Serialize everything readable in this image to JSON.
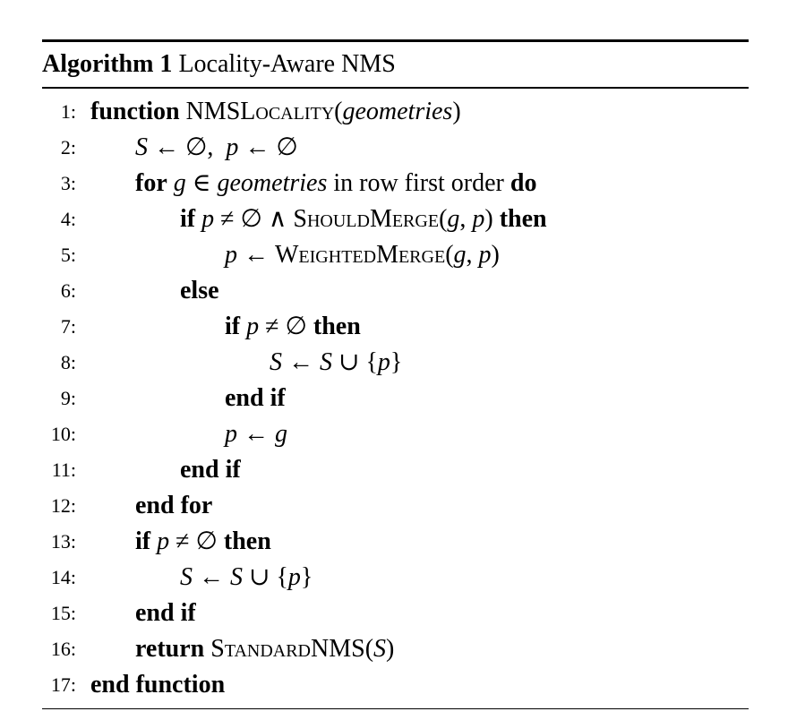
{
  "caption": {
    "label": "Algorithm 1",
    "title": "Locality-Aware NMS"
  },
  "lines": [
    {
      "num": "1:",
      "indent": 0,
      "tokens": [
        {
          "t": "function",
          "c": "kw"
        },
        {
          "t": " "
        },
        {
          "t": "NMSL"
        },
        {
          "t": "ocality",
          "c": "sc"
        },
        {
          "t": "("
        },
        {
          "t": "geometries",
          "c": "m"
        },
        {
          "t": ")"
        }
      ]
    },
    {
      "num": "2:",
      "indent": 1,
      "tokens": [
        {
          "t": "S",
          "c": "m"
        },
        {
          "t": " ← ∅,  "
        },
        {
          "t": "p",
          "c": "m"
        },
        {
          "t": " ← ∅"
        }
      ]
    },
    {
      "num": "3:",
      "indent": 1,
      "tokens": [
        {
          "t": "for",
          "c": "kw"
        },
        {
          "t": " "
        },
        {
          "t": "g",
          "c": "m"
        },
        {
          "t": " ∈ "
        },
        {
          "t": "geometries",
          "c": "m"
        },
        {
          "t": " in row first order "
        },
        {
          "t": "do",
          "c": "kw"
        }
      ]
    },
    {
      "num": "4:",
      "indent": 2,
      "tokens": [
        {
          "t": "if",
          "c": "kw"
        },
        {
          "t": " "
        },
        {
          "t": "p",
          "c": "m"
        },
        {
          "t": " ≠ ∅ ∧ "
        },
        {
          "t": "ShouldMerge",
          "c": "sc"
        },
        {
          "t": "("
        },
        {
          "t": "g",
          "c": "m"
        },
        {
          "t": ", "
        },
        {
          "t": "p",
          "c": "m"
        },
        {
          "t": ") "
        },
        {
          "t": "then",
          "c": "kw"
        }
      ]
    },
    {
      "num": "5:",
      "indent": 3,
      "tokens": [
        {
          "t": "p",
          "c": "m"
        },
        {
          "t": " ← "
        },
        {
          "t": "WeightedMerge",
          "c": "sc"
        },
        {
          "t": "("
        },
        {
          "t": "g",
          "c": "m"
        },
        {
          "t": ", "
        },
        {
          "t": "p",
          "c": "m"
        },
        {
          "t": ")"
        }
      ]
    },
    {
      "num": "6:",
      "indent": 2,
      "tokens": [
        {
          "t": "else",
          "c": "kw"
        }
      ]
    },
    {
      "num": "7:",
      "indent": 3,
      "tokens": [
        {
          "t": "if",
          "c": "kw"
        },
        {
          "t": " "
        },
        {
          "t": "p",
          "c": "m"
        },
        {
          "t": " ≠ ∅ "
        },
        {
          "t": "then",
          "c": "kw"
        }
      ]
    },
    {
      "num": "8:",
      "indent": 4,
      "tokens": [
        {
          "t": "S",
          "c": "m"
        },
        {
          "t": " ← "
        },
        {
          "t": "S",
          "c": "m"
        },
        {
          "t": " ∪ {"
        },
        {
          "t": "p",
          "c": "m"
        },
        {
          "t": "}"
        }
      ]
    },
    {
      "num": "9:",
      "indent": 3,
      "tokens": [
        {
          "t": "end if",
          "c": "kw"
        }
      ]
    },
    {
      "num": "10:",
      "indent": 3,
      "tokens": [
        {
          "t": "p",
          "c": "m"
        },
        {
          "t": " ← "
        },
        {
          "t": "g",
          "c": "m"
        }
      ]
    },
    {
      "num": "11:",
      "indent": 2,
      "tokens": [
        {
          "t": "end if",
          "c": "kw"
        }
      ]
    },
    {
      "num": "12:",
      "indent": 1,
      "tokens": [
        {
          "t": "end for",
          "c": "kw"
        }
      ]
    },
    {
      "num": "13:",
      "indent": 1,
      "tokens": [
        {
          "t": "if",
          "c": "kw"
        },
        {
          "t": " "
        },
        {
          "t": "p",
          "c": "m"
        },
        {
          "t": " ≠ ∅ "
        },
        {
          "t": "then",
          "c": "kw"
        }
      ]
    },
    {
      "num": "14:",
      "indent": 2,
      "tokens": [
        {
          "t": "S",
          "c": "m"
        },
        {
          "t": " ← "
        },
        {
          "t": "S",
          "c": "m"
        },
        {
          "t": " ∪ {"
        },
        {
          "t": "p",
          "c": "m"
        },
        {
          "t": "}"
        }
      ]
    },
    {
      "num": "15:",
      "indent": 1,
      "tokens": [
        {
          "t": "end if",
          "c": "kw"
        }
      ]
    },
    {
      "num": "16:",
      "indent": 1,
      "tokens": [
        {
          "t": "return",
          "c": "kw"
        },
        {
          "t": " "
        },
        {
          "t": "StandardNMS",
          "c": "sc"
        },
        {
          "t": "("
        },
        {
          "t": "S",
          "c": "m"
        },
        {
          "t": ")"
        }
      ]
    },
    {
      "num": "17:",
      "indent": 0,
      "tokens": [
        {
          "t": "end function",
          "c": "kw"
        }
      ]
    }
  ]
}
